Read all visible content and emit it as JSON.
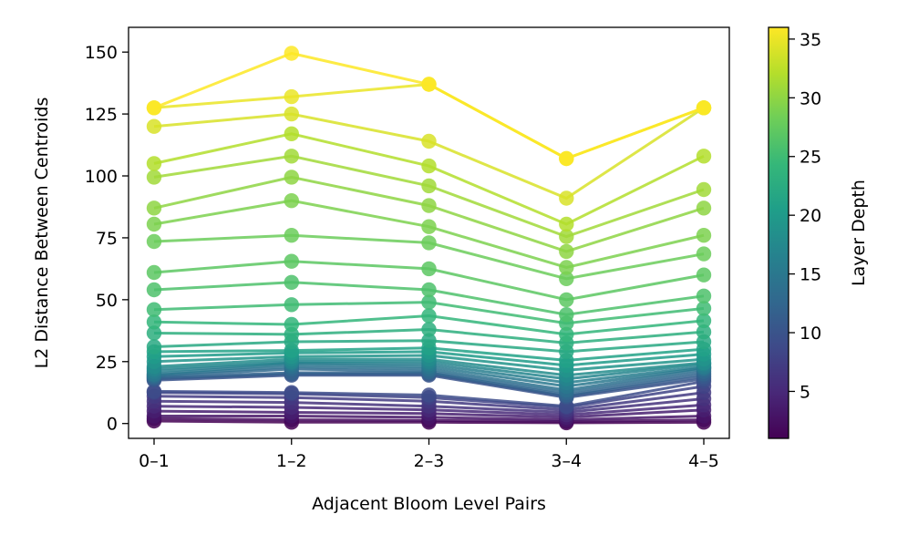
{
  "chart_data": {
    "type": "line",
    "title": "",
    "xlabel": "Adjacent Bloom Level Pairs",
    "ylabel": "L2 Distance Between Centroids",
    "categories": [
      "0–1",
      "1–2",
      "2–3",
      "3–4",
      "4–5"
    ],
    "ylim": [
      -6,
      160
    ],
    "yticks": [
      0,
      25,
      50,
      75,
      100,
      125,
      150
    ],
    "yticklabels": [
      "0",
      "25",
      "50",
      "75",
      "100",
      "125",
      "150"
    ],
    "grid": false,
    "marker": "circle",
    "colorbar": {
      "label": "Layer Depth",
      "colormap": "viridis",
      "range": [
        1,
        36
      ],
      "ticks": [
        5,
        10,
        15,
        20,
        25,
        30,
        35
      ],
      "ticklabels": [
        "5",
        "10",
        "15",
        "20",
        "25",
        "30",
        "35"
      ]
    },
    "series": [
      {
        "layer": 1,
        "values": [
          1.0,
          0.5,
          0.5,
          0.3,
          0.5
        ]
      },
      {
        "layer": 2,
        "values": [
          2.0,
          1.5,
          1.2,
          0.8,
          1.5
        ]
      },
      {
        "layer": 3,
        "values": [
          3.0,
          3.0,
          2.5,
          1.5,
          3.0
        ]
      },
      {
        "layer": 4,
        "values": [
          5.0,
          4.5,
          4.0,
          2.5,
          5.5
        ]
      },
      {
        "layer": 5,
        "values": [
          7.0,
          6.5,
          5.5,
          3.5,
          7.5
        ]
      },
      {
        "layer": 6,
        "values": [
          9.0,
          8.5,
          7.0,
          4.5,
          10.0
        ]
      },
      {
        "layer": 7,
        "values": [
          11.0,
          10.5,
          9.0,
          5.5,
          12.5
        ]
      },
      {
        "layer": 8,
        "values": [
          12.5,
          12.0,
          10.5,
          6.5,
          15.0
        ]
      },
      {
        "layer": 9,
        "values": [
          13.0,
          12.5,
          11.5,
          7.0,
          17.0
        ]
      },
      {
        "layer": 10,
        "values": [
          17.5,
          19.5,
          19.5,
          10.5,
          18.0
        ]
      },
      {
        "layer": 11,
        "values": [
          18.0,
          20.0,
          20.0,
          11.0,
          19.0
        ]
      },
      {
        "layer": 12,
        "values": [
          18.5,
          20.5,
          20.5,
          11.5,
          20.0
        ]
      },
      {
        "layer": 13,
        "values": [
          19.0,
          22.0,
          21.0,
          12.5,
          21.0
        ]
      },
      {
        "layer": 14,
        "values": [
          19.5,
          23.0,
          22.0,
          13.5,
          22.0
        ]
      },
      {
        "layer": 15,
        "values": [
          20.0,
          24.0,
          23.0,
          15.0,
          22.5
        ]
      },
      {
        "layer": 16,
        "values": [
          21.0,
          24.5,
          24.0,
          16.5,
          23.0
        ]
      },
      {
        "layer": 17,
        "values": [
          22.0,
          25.0,
          25.0,
          18.0,
          24.0
        ]
      },
      {
        "layer": 18,
        "values": [
          23.0,
          26.0,
          26.0,
          19.5,
          24.5
        ]
      },
      {
        "layer": 19,
        "values": [
          25.0,
          27.0,
          27.5,
          21.5,
          26.0
        ]
      },
      {
        "layer": 20,
        "values": [
          27.0,
          28.5,
          29.0,
          23.5,
          28.0
        ]
      },
      {
        "layer": 21,
        "values": [
          29.0,
          29.5,
          30.5,
          25.5,
          30.0
        ]
      },
      {
        "layer": 22,
        "values": [
          31.0,
          33.0,
          33.5,
          29.0,
          33.0
        ]
      },
      {
        "layer": 23,
        "values": [
          36.5,
          36.0,
          38.0,
          32.5,
          37.0
        ]
      },
      {
        "layer": 24,
        "values": [
          41.0,
          40.0,
          43.5,
          36.0,
          41.5
        ]
      },
      {
        "layer": 25,
        "values": [
          46.0,
          48.0,
          49.0,
          40.5,
          46.5
        ]
      },
      {
        "layer": 26,
        "values": [
          54.0,
          57.0,
          54.0,
          44.0,
          51.5
        ]
      },
      {
        "layer": 27,
        "values": [
          61.0,
          65.5,
          62.5,
          50.0,
          60.0
        ]
      },
      {
        "layer": 28,
        "values": [
          73.5,
          76.0,
          73.0,
          58.5,
          68.5
        ]
      },
      {
        "layer": 29,
        "values": [
          80.5,
          90.0,
          79.5,
          63.0,
          76.0
        ]
      },
      {
        "layer": 30,
        "values": [
          87.0,
          99.5,
          88.0,
          69.5,
          87.0
        ]
      },
      {
        "layer": 31,
        "values": [
          99.5,
          108.0,
          96.0,
          75.5,
          94.5
        ]
      },
      {
        "layer": 32,
        "values": [
          105.0,
          117.0,
          104.0,
          80.5,
          108.0
        ]
      },
      {
        "layer": 34,
        "values": [
          120.0,
          125.0,
          114.0,
          91.0,
          127.5
        ]
      },
      {
        "layer": 35,
        "values": [
          127.5,
          132.0,
          137.0,
          107.0,
          127.5
        ]
      },
      {
        "layer": 36,
        "values": [
          127.5,
          149.5,
          137.0,
          107.0,
          127.5
        ]
      }
    ]
  }
}
